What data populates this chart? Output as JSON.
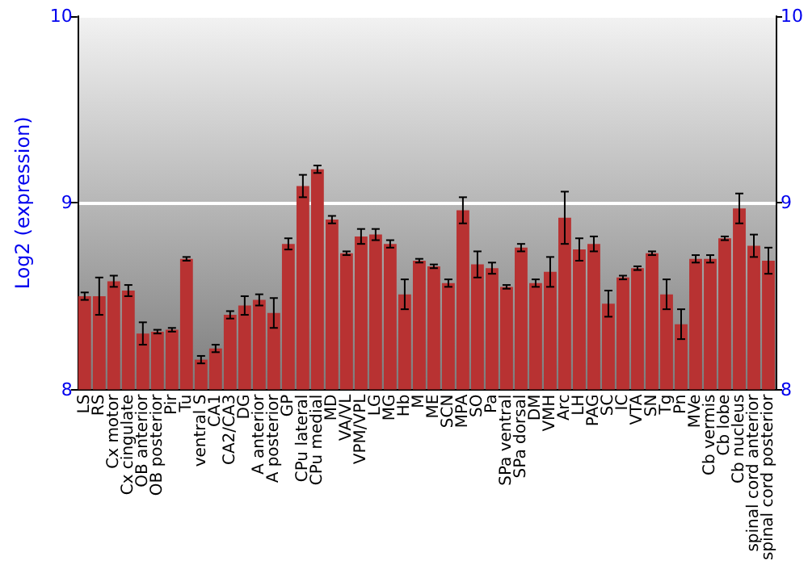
{
  "chart_data": {
    "type": "bar",
    "ylabel": "Log2 (expression)",
    "categories": [
      "LS",
      "RS",
      "Cx motor",
      "Cx cingulate",
      "OB anterior",
      "OB posterior",
      "Pir",
      "Tu",
      "ventral S",
      "CA1",
      "CA2/CA3",
      "DG",
      "A anterior",
      "A posterior",
      "GP",
      "CPu lateral",
      "CPu medial",
      "MD",
      "VA/VL",
      "VPM/VPL",
      "LG",
      "MG",
      "Hb",
      "M",
      "ME",
      "SCN",
      "MPA",
      "SO",
      "Pa",
      "SPa ventral",
      "SPa dorsal",
      "DM",
      "VMH",
      "Arc",
      "LH",
      "PAG",
      "SC",
      "IC",
      "VTA",
      "SN",
      "Tg",
      "Pn",
      "MVe",
      "Cb vermis",
      "Cb lobe",
      "Cb nucleus",
      "spinal cord anterior",
      "spinal cord posterior"
    ],
    "values": [
      8.5,
      8.5,
      8.58,
      8.53,
      8.3,
      8.31,
      8.32,
      8.7,
      8.16,
      8.22,
      8.4,
      8.45,
      8.48,
      8.41,
      8.78,
      9.09,
      9.18,
      8.91,
      8.73,
      8.82,
      8.83,
      8.78,
      8.51,
      8.69,
      8.66,
      8.57,
      8.96,
      8.67,
      8.65,
      8.55,
      8.76,
      8.57,
      8.63,
      8.92,
      8.75,
      8.78,
      8.46,
      8.6,
      8.65,
      8.73,
      8.51,
      8.35,
      8.7,
      8.7,
      8.81,
      8.97,
      8.77,
      8.69
    ],
    "errors": [
      0.02,
      0.1,
      0.03,
      0.03,
      0.06,
      0.01,
      0.01,
      0.01,
      0.02,
      0.02,
      0.02,
      0.05,
      0.03,
      0.08,
      0.03,
      0.06,
      0.02,
      0.02,
      0.01,
      0.04,
      0.03,
      0.02,
      0.08,
      0.01,
      0.01,
      0.02,
      0.07,
      0.07,
      0.03,
      0.01,
      0.02,
      0.02,
      0.08,
      0.14,
      0.06,
      0.04,
      0.07,
      0.01,
      0.01,
      0.01,
      0.08,
      0.08,
      0.02,
      0.02,
      0.01,
      0.08,
      0.06,
      0.07
    ],
    "color": "#b83232",
    "ylim": [
      8,
      10
    ],
    "yticks": [
      8,
      9,
      10
    ],
    "y2lim": [
      8,
      10
    ],
    "y2ticks": [
      8,
      9,
      10
    ],
    "grid": "y"
  }
}
